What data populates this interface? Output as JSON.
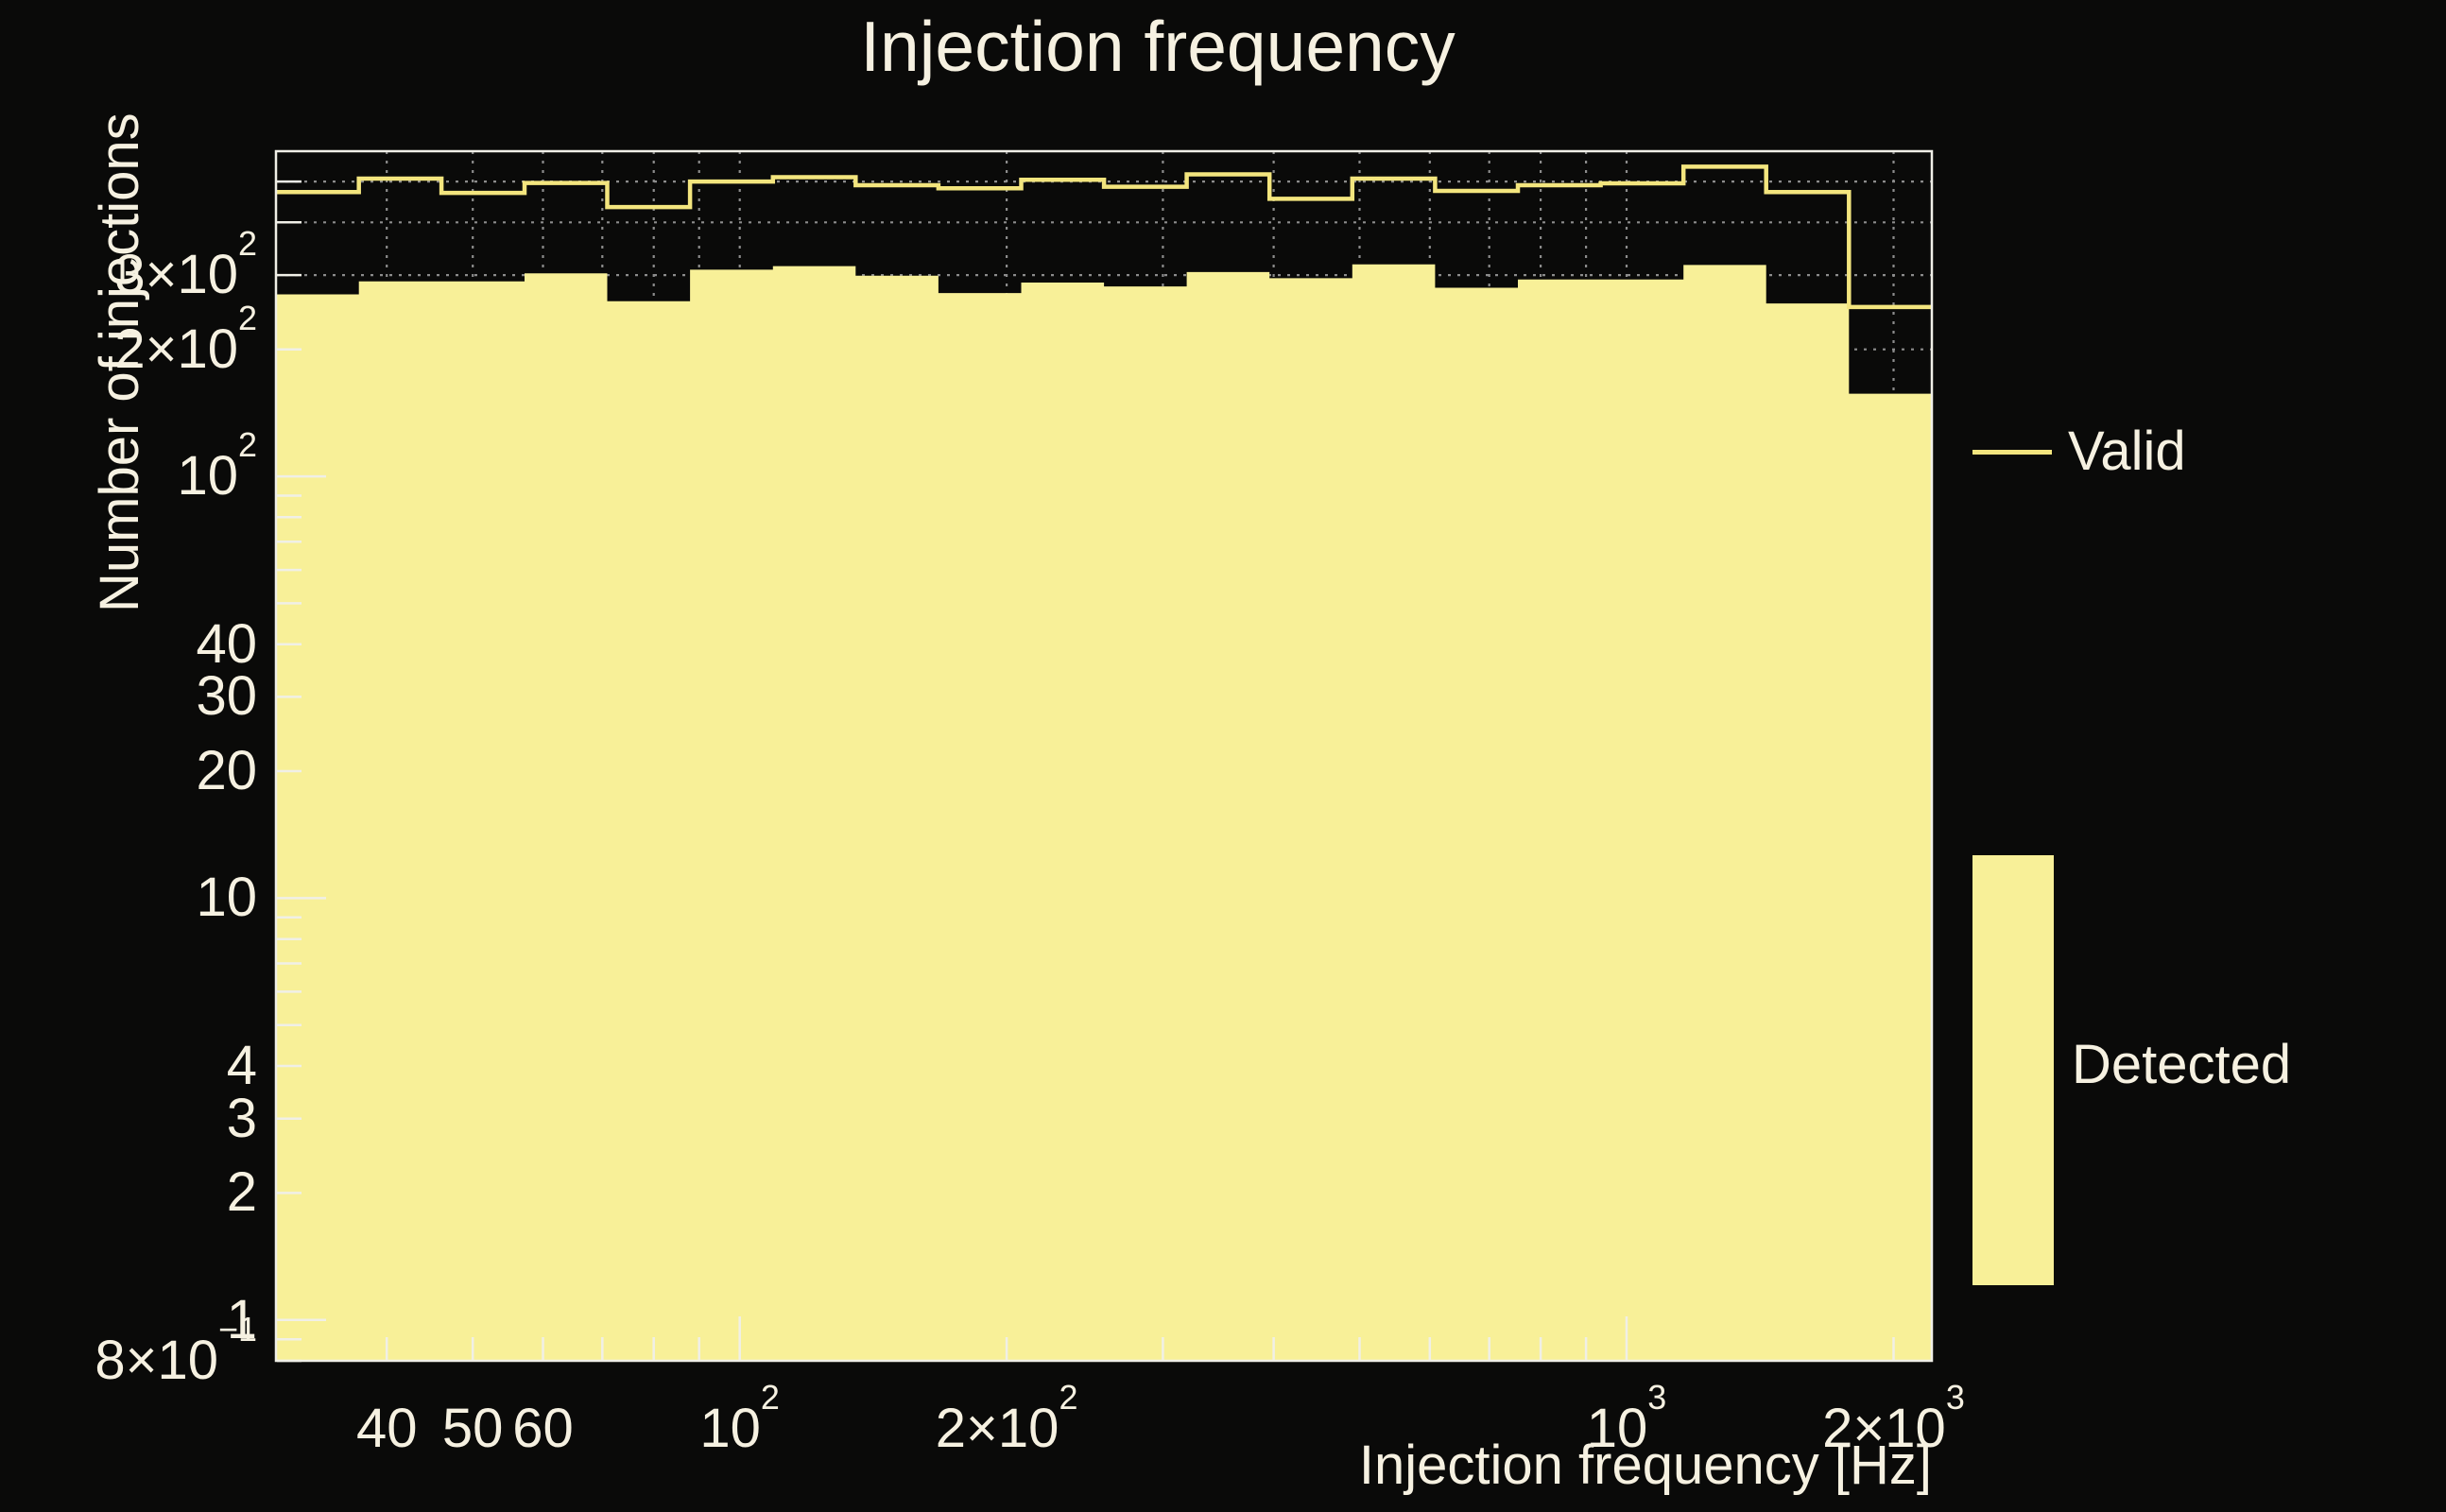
{
  "chart_data": {
    "type": "step-histogram",
    "title": "Injection frequency",
    "xlabel": "Injection frequency [Hz]",
    "ylabel": "Number of injections",
    "xscale": "log",
    "yscale": "log",
    "xlim": [
      30,
      2209
    ],
    "ylim": [
      0.8,
      590
    ],
    "bin_edges_hz": [
      30,
      37.2,
      46.1,
      57.2,
      70.9,
      87.9,
      109,
      135.1,
      167.5,
      207.7,
      257.5,
      319.2,
      395.7,
      490.6,
      608.2,
      754.1,
      934.9,
      1159,
      1436.9,
      1781.5,
      2208.6
    ],
    "series": [
      {
        "name": "Valid",
        "style": "line",
        "values": [
          472,
          508,
          470,
          496,
          435,
          500,
          512,
          490,
          482,
          505,
          486,
          520,
          455,
          508,
          475,
          490,
          495,
          542,
          472,
          252
        ]
      },
      {
        "name": "Detected",
        "style": "fill",
        "values": [
          270,
          290,
          290,
          303,
          260,
          309,
          315,
          299,
          272,
          288,
          282,
          305,
          295,
          318,
          280,
          293,
          293,
          317,
          257,
          157
        ]
      }
    ],
    "x_axis": {
      "labeled_ticks": [
        {
          "value": 40,
          "base": "40"
        },
        {
          "value": 50,
          "base": "50"
        },
        {
          "value": 60,
          "base": "60"
        },
        {
          "value": 100,
          "base": "10",
          "sup": "2"
        },
        {
          "value": 200,
          "base": "2×10",
          "sup": "2"
        },
        {
          "value": 1000,
          "base": "10",
          "sup": "3"
        },
        {
          "value": 2000,
          "base": "2×10",
          "sup": "3"
        }
      ],
      "minor_ticks": [
        70,
        80,
        90,
        300,
        400,
        500,
        600,
        700,
        800,
        900
      ],
      "major_tick_values": [
        100,
        1000
      ]
    },
    "y_axis": {
      "labeled_ticks": [
        {
          "value": 300,
          "base": "3×10",
          "sup": "2"
        },
        {
          "value": 200,
          "base": "2×10",
          "sup": "2"
        },
        {
          "value": 100,
          "base": "10",
          "sup": "2"
        },
        {
          "value": 40,
          "base": "40"
        },
        {
          "value": 30,
          "base": "30"
        },
        {
          "value": 20,
          "base": "20"
        },
        {
          "value": 10,
          "base": "10"
        },
        {
          "value": 4,
          "base": "4"
        },
        {
          "value": 3,
          "base": "3"
        },
        {
          "value": 2,
          "base": "2"
        },
        {
          "value": 1,
          "base": "1"
        },
        {
          "value": 0.8,
          "base": "8×10",
          "sup": "−1"
        }
      ],
      "minor_ticks": [
        0.9,
        5,
        6,
        7,
        8,
        9,
        50,
        60,
        70,
        80,
        90,
        400,
        500
      ],
      "major_tick_values": [
        1,
        10,
        100
      ]
    },
    "grid": {
      "style": "dotted",
      "x_values": [
        40,
        50,
        60,
        70,
        80,
        90,
        100,
        200,
        300,
        400,
        500,
        600,
        700,
        800,
        900,
        1000,
        2000
      ],
      "y_values": [
        200,
        300,
        400,
        500
      ]
    },
    "legend": [
      {
        "label": "Valid",
        "swatch": "line"
      },
      {
        "label": "Detected",
        "swatch": "box"
      }
    ]
  },
  "colors": {
    "background": "#0a0a09",
    "detected_fill": "#f8f098",
    "valid_line": "#f3e57e",
    "text": "#f6f1e1",
    "frame": "#f0efe7",
    "grid": "#8c8c8c"
  }
}
